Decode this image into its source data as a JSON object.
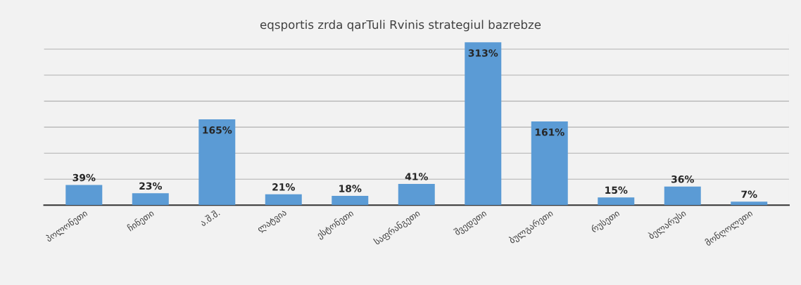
{
  "chart_data": {
    "type": "bar",
    "title": "eqsportis zrda qarTuli Rvinis strategiul bazrebze",
    "categories": [
      "პოლონეთი",
      "ჩინეთი",
      "ა.შ.შ.",
      "ლატვია",
      "ესტონეთი",
      "საფრანგეთი",
      "შვედეთი",
      "ბულგარეთი",
      "რუსეთი",
      "ბელარუსი",
      "მონღოლეთი"
    ],
    "values": [
      39,
      23,
      165,
      21,
      18,
      41,
      313,
      161,
      15,
      36,
      7
    ],
    "value_labels": [
      "39%",
      "23%",
      "165%",
      "21%",
      "18%",
      "41%",
      "313%",
      "161%",
      "15%",
      "36%",
      "7%"
    ],
    "color": "#5b9bd5",
    "yticks": [
      {
        "value": 0,
        "label": null
      },
      {
        "value": 50,
        "label": null
      },
      {
        "value": 100,
        "label": null
      },
      {
        "value": 150,
        "label": null
      },
      {
        "value": 200,
        "label": null
      },
      {
        "value": 250,
        "label": null
      },
      {
        "value": 300,
        "label": null
      }
    ],
    "tick_labels": "x",
    "grid": "y",
    "legend": false
  }
}
